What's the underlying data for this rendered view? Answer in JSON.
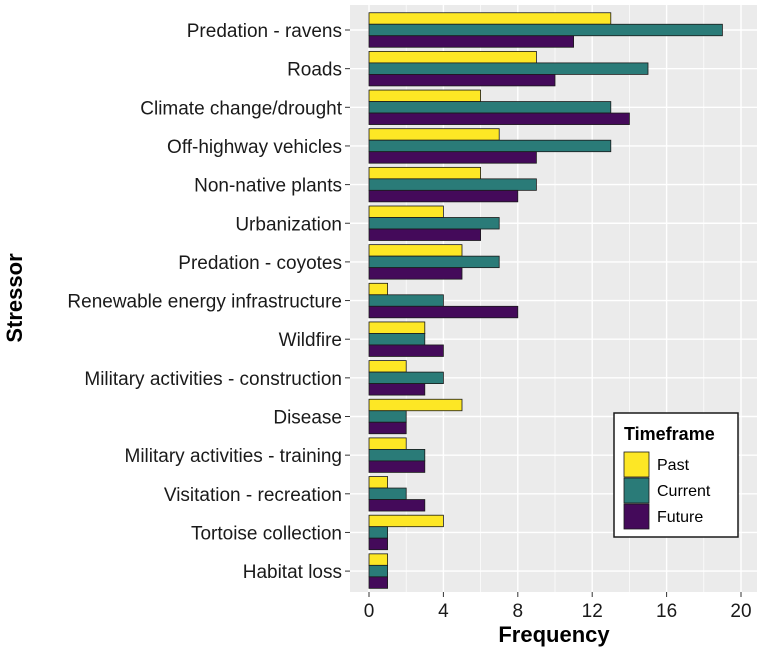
{
  "chart_data": {
    "type": "bar",
    "orientation": "horizontal",
    "categories": [
      "Predation - ravens",
      "Roads",
      "Climate change/drought",
      "Off-highway vehicles",
      "Non-native plants",
      "Urbanization",
      "Predation - coyotes",
      "Renewable energy infrastructure",
      "Wildfire",
      "Military activities - construction",
      "Disease",
      "Military activities - training",
      "Visitation - recreation",
      "Tortoise collection",
      "Habitat loss"
    ],
    "series": [
      {
        "name": "Past",
        "color": "#FDE725",
        "values": [
          13,
          9,
          6,
          7,
          6,
          4,
          5,
          1,
          3,
          2,
          5,
          2,
          1,
          4,
          1
        ]
      },
      {
        "name": "Current",
        "color": "#2A7B78",
        "values": [
          19,
          15,
          13,
          13,
          9,
          7,
          7,
          4,
          3,
          4,
          2,
          3,
          2,
          1,
          1
        ]
      },
      {
        "name": "Future",
        "color": "#440A5A",
        "values": [
          11,
          10,
          14,
          9,
          8,
          6,
          5,
          8,
          4,
          3,
          2,
          3,
          3,
          1,
          1
        ]
      }
    ],
    "xlabel": "Frequency",
    "ylabel": "Stressor",
    "xlim": [
      0,
      20.8
    ],
    "xticks": [
      0,
      4,
      8,
      12,
      16,
      20
    ],
    "grid": true,
    "panel_background": "#EBEBEB",
    "legend": {
      "title": "Timeframe",
      "placement": "bottom-right",
      "entries": [
        "Past",
        "Current",
        "Future"
      ]
    }
  }
}
